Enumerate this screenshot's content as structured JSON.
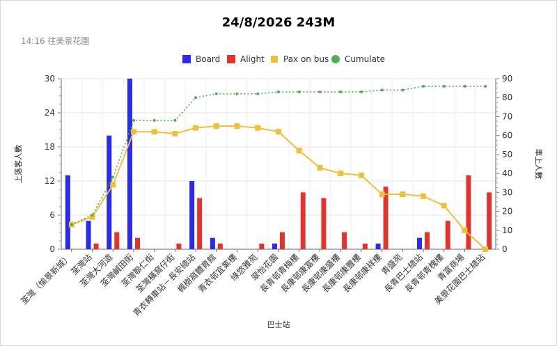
{
  "header": {
    "title": "24/8/2026 243M",
    "subtitle": "14:16 往美景花園"
  },
  "chart_data": {
    "type": "bar",
    "title": "24/8/2026 243M",
    "subtitle": "14:16 往美景花園",
    "xlabel": "巴士站",
    "ylabel_left": "上落客人數",
    "ylabel_right": "車上人數",
    "ylim_left": [
      0,
      30
    ],
    "ylim_right": [
      0,
      90
    ],
    "yticks_left": [
      0,
      6,
      12,
      18,
      24,
      30
    ],
    "yticks_right": [
      0,
      10,
      20,
      30,
      40,
      50,
      60,
      70,
      80,
      90
    ],
    "grid": true,
    "legend_position": "top",
    "categories": [
      "荃灣（愉景新城）",
      "荃灣站",
      "荃灣大河道",
      "荃灣鹹田街",
      "荃灣聯仁街",
      "荃灣橫窩仔街",
      "青衣轉車站－長安總站",
      "楓樹窩體育館",
      "青衣邨宜業樓",
      "綠悠雅苑",
      "翠怡花園",
      "長青邨青梅樓",
      "長康邨康富樓",
      "長康邨康盛樓",
      "長康邨康豐樓",
      "長康邨康祥樓",
      "青盛苑",
      "長青巴士總站",
      "長青邨青槐樓",
      "青富商場",
      "美景花園巴士總站"
    ],
    "series": [
      {
        "name": "Board",
        "type": "bar",
        "axis": "left",
        "color": "#2b2bf0",
        "values": [
          13,
          5,
          20,
          30,
          0,
          0,
          12,
          2,
          0,
          0,
          1,
          0,
          0,
          0,
          0,
          1,
          0,
          2,
          0,
          0,
          0
        ]
      },
      {
        "name": "Alight",
        "type": "bar",
        "axis": "left",
        "color": "#e3342c",
        "values": [
          0,
          1,
          3,
          2,
          0,
          1,
          9,
          1,
          0,
          1,
          3,
          10,
          9,
          3,
          1,
          11,
          0,
          3,
          5,
          13,
          10
        ]
      },
      {
        "name": "Pax on bus",
        "type": "line",
        "axis": "right",
        "color": "#f0c03c",
        "values": [
          13,
          17,
          34,
          62,
          62,
          61,
          64,
          65,
          65,
          64,
          62,
          52,
          43,
          40,
          39,
          29,
          29,
          28,
          23,
          10,
          0
        ]
      },
      {
        "name": "Cumulate",
        "type": "line-dotted",
        "axis": "right",
        "color": "#4caf50",
        "values": [
          13,
          18,
          38,
          68,
          68,
          68,
          80,
          82,
          82,
          82,
          83,
          83,
          83,
          83,
          83,
          84,
          84,
          86,
          86,
          86,
          86
        ]
      }
    ]
  }
}
